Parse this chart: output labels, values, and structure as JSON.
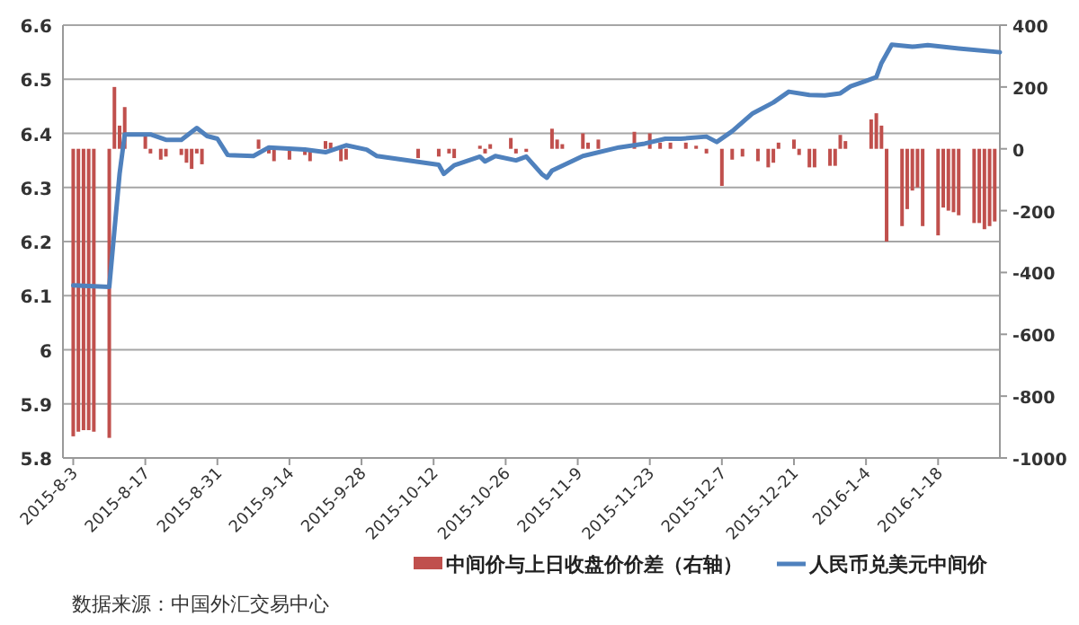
{
  "chart_data": {
    "type": "line",
    "xlim": [
      "2015-08-01",
      "2016-01-30"
    ],
    "xticks": [
      {
        "value": "2015-08-03",
        "label": "2015-8-3"
      },
      {
        "value": "2015-08-17",
        "label": "2015-8-17"
      },
      {
        "value": "2015-08-31",
        "label": "2015-8-31"
      },
      {
        "value": "2015-09-14",
        "label": "2015-9-14"
      },
      {
        "value": "2015-09-28",
        "label": "2015-9-28"
      },
      {
        "value": "2015-10-12",
        "label": "2015-10-12"
      },
      {
        "value": "2015-10-26",
        "label": "2015-10-26"
      },
      {
        "value": "2015-11-09",
        "label": "2015-11-9"
      },
      {
        "value": "2015-11-23",
        "label": "2015-11-23"
      },
      {
        "value": "2015-12-07",
        "label": "2015-12-7"
      },
      {
        "value": "2015-12-21",
        "label": "2015-12-21"
      },
      {
        "value": "2016-01-04",
        "label": "2016-1-4"
      },
      {
        "value": "2016-01-18",
        "label": "2016-1-18"
      }
    ],
    "ylim": [
      5.8,
      6.6
    ],
    "yticks": [
      5.8,
      5.9,
      6,
      6.1,
      6.2,
      6.3,
      6.4,
      6.5,
      6.6
    ],
    "y2lim": [
      -1000,
      400
    ],
    "y2ticks": [
      -1000,
      -800,
      -600,
      -400,
      -200,
      0,
      200,
      400
    ],
    "grid": "y",
    "legend": "bottom",
    "series": [
      {
        "name": "中间价与上日收盘价价差（右轴）",
        "type": "bar",
        "axis": "y2",
        "color": "#c0504d",
        "x": [
          "2015-08-03",
          "2015-08-04",
          "2015-08-05",
          "2015-08-06",
          "2015-08-07",
          "2015-08-10",
          "2015-08-11",
          "2015-08-12",
          "2015-08-13",
          "2015-08-17",
          "2015-08-18",
          "2015-08-20",
          "2015-08-21",
          "2015-08-24",
          "2015-08-25",
          "2015-08-26",
          "2015-08-27",
          "2015-08-28",
          "2015-09-08",
          "2015-09-10",
          "2015-09-11",
          "2015-09-14",
          "2015-09-17",
          "2015-09-18",
          "2015-09-21",
          "2015-09-22",
          "2015-09-24",
          "2015-09-25",
          "2015-10-09",
          "2015-10-13",
          "2015-10-15",
          "2015-10-16",
          "2015-10-21",
          "2015-10-22",
          "2015-10-23",
          "2015-10-27",
          "2015-10-28",
          "2015-10-30",
          "2015-11-04",
          "2015-11-05",
          "2015-11-06",
          "2015-11-10",
          "2015-11-11",
          "2015-11-13",
          "2015-11-20",
          "2015-11-23",
          "2015-11-25",
          "2015-11-27",
          "2015-11-30",
          "2015-12-02",
          "2015-12-04",
          "2015-12-07",
          "2015-12-09",
          "2015-12-11",
          "2015-12-14",
          "2015-12-16",
          "2015-12-17",
          "2015-12-18",
          "2015-12-21",
          "2015-12-22",
          "2015-12-24",
          "2015-12-25",
          "2015-12-28",
          "2015-12-29",
          "2015-12-30",
          "2015-12-31",
          "2016-01-05",
          "2016-01-06",
          "2016-01-07",
          "2016-01-08",
          "2016-01-11",
          "2016-01-12",
          "2016-01-13",
          "2016-01-14",
          "2016-01-15",
          "2016-01-18",
          "2016-01-19",
          "2016-01-20",
          "2016-01-21",
          "2016-01-22",
          "2016-01-25",
          "2016-01-26",
          "2016-01-27",
          "2016-01-28",
          "2016-01-29"
        ],
        "values": [
          -930,
          -915,
          -910,
          -910,
          -915,
          -935,
          200,
          75,
          135,
          45,
          -15,
          -35,
          -25,
          -20,
          -45,
          -65,
          -15,
          -50,
          30,
          -15,
          -40,
          -35,
          -20,
          -40,
          25,
          20,
          -40,
          -35,
          -30,
          -25,
          -15,
          -30,
          10,
          -15,
          15,
          35,
          -15,
          -10,
          65,
          30,
          15,
          50,
          20,
          30,
          55,
          50,
          20,
          20,
          20,
          10,
          -15,
          -120,
          -35,
          -25,
          -40,
          -60,
          -45,
          20,
          30,
          -20,
          -60,
          -60,
          -55,
          -55,
          45,
          25,
          95,
          115,
          75,
          -300,
          -250,
          -195,
          -135,
          -125,
          -250,
          -280,
          -190,
          -200,
          -205,
          -215,
          -240,
          -240,
          -260,
          -250,
          -235
        ]
      },
      {
        "name": "人民币兑美元中间价",
        "color": "#4f81bd",
        "x": [
          "2015-08-03",
          "2015-08-10",
          "2015-08-12",
          "2015-08-13",
          "2015-08-18",
          "2015-08-21",
          "2015-08-24",
          "2015-08-27",
          "2015-08-29",
          "2015-08-31",
          "2015-09-02",
          "2015-09-07",
          "2015-09-10",
          "2015-09-17",
          "2015-09-21",
          "2015-09-25",
          "2015-09-29",
          "2015-10-01",
          "2015-10-13",
          "2015-10-14",
          "2015-10-16",
          "2015-10-21",
          "2015-10-22",
          "2015-10-24",
          "2015-10-28",
          "2015-10-30",
          "2015-11-02",
          "2015-11-03",
          "2015-11-04",
          "2015-11-10",
          "2015-11-17",
          "2015-11-22",
          "2015-11-26",
          "2015-11-29",
          "2015-12-04",
          "2015-12-06",
          "2015-12-09",
          "2015-12-13",
          "2015-12-17",
          "2015-12-20",
          "2015-12-24",
          "2015-12-27",
          "2015-12-30",
          "2016-01-01",
          "2016-01-04",
          "2016-01-06",
          "2016-01-07",
          "2016-01-09",
          "2016-01-13",
          "2016-01-16",
          "2016-01-22",
          "2016-01-30"
        ],
        "values": [
          6.119,
          6.116,
          6.325,
          6.398,
          6.398,
          6.388,
          6.388,
          6.41,
          6.395,
          6.39,
          6.36,
          6.358,
          6.374,
          6.37,
          6.365,
          6.378,
          6.37,
          6.358,
          6.342,
          6.325,
          6.341,
          6.357,
          6.348,
          6.358,
          6.35,
          6.357,
          6.325,
          6.318,
          6.331,
          6.358,
          6.374,
          6.381,
          6.39,
          6.39,
          6.394,
          6.384,
          6.404,
          6.437,
          6.457,
          6.477,
          6.471,
          6.47,
          6.474,
          6.487,
          6.497,
          6.504,
          6.53,
          6.564,
          6.56,
          6.563,
          6.557,
          6.55
        ]
      }
    ],
    "annotations": [
      "数据来源：中国外汇交易中心"
    ]
  }
}
